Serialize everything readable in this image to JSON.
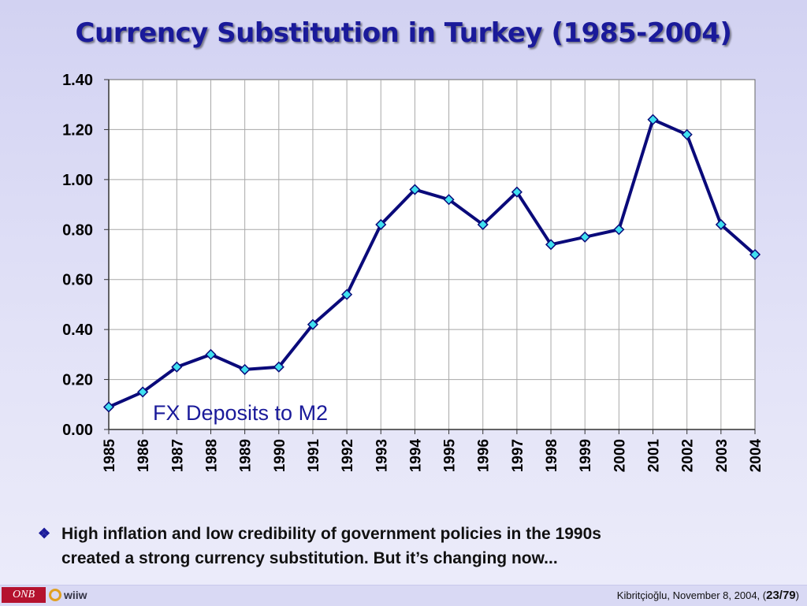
{
  "slide": {
    "title": "Currency Substitution in Turkey (1985-2004)",
    "bullet_icon": "diamond-bullet-icon",
    "bullet_line1": "High inflation and low credibility of government policies in the 1990s",
    "bullet_line2": "created a strong currency substitution. But it’s changing now..."
  },
  "footer": {
    "logo_onb": "ONB",
    "logo_wiiw": "wiiw",
    "author_date": "Kibritçioğlu, November 8, 2004, (",
    "page": "23/79",
    "close": ")"
  },
  "chart_data": {
    "type": "line",
    "title": "",
    "annotation": "FX Deposits to M2",
    "xlabel": "",
    "ylabel": "",
    "categories": [
      "1985",
      "1986",
      "1987",
      "1988",
      "1989",
      "1990",
      "1991",
      "1992",
      "1993",
      "1994",
      "1995",
      "1996",
      "1997",
      "1998",
      "1999",
      "2000",
      "2001",
      "2002",
      "2003",
      "2004"
    ],
    "series": [
      {
        "name": "FX Deposits to M2",
        "values": [
          0.09,
          0.15,
          0.25,
          0.3,
          0.24,
          0.25,
          0.42,
          0.54,
          0.82,
          0.96,
          0.92,
          0.82,
          0.95,
          0.74,
          0.77,
          0.8,
          1.24,
          1.18,
          0.82,
          0.7
        ]
      }
    ],
    "ylim": [
      0,
      1.4
    ],
    "yticks": [
      "0.00",
      "0.20",
      "0.40",
      "0.60",
      "0.80",
      "1.00",
      "1.20",
      "1.40"
    ],
    "ytick_values": [
      0,
      0.2,
      0.4,
      0.6,
      0.8,
      1.0,
      1.2,
      1.4
    ],
    "grid": true,
    "colors": {
      "line": "#0a0a7a",
      "marker_fill": "#40e0f0",
      "marker_stroke": "#0a0a7a",
      "grid": "#a8a8a8",
      "annotation": "#1a1a9a"
    }
  }
}
